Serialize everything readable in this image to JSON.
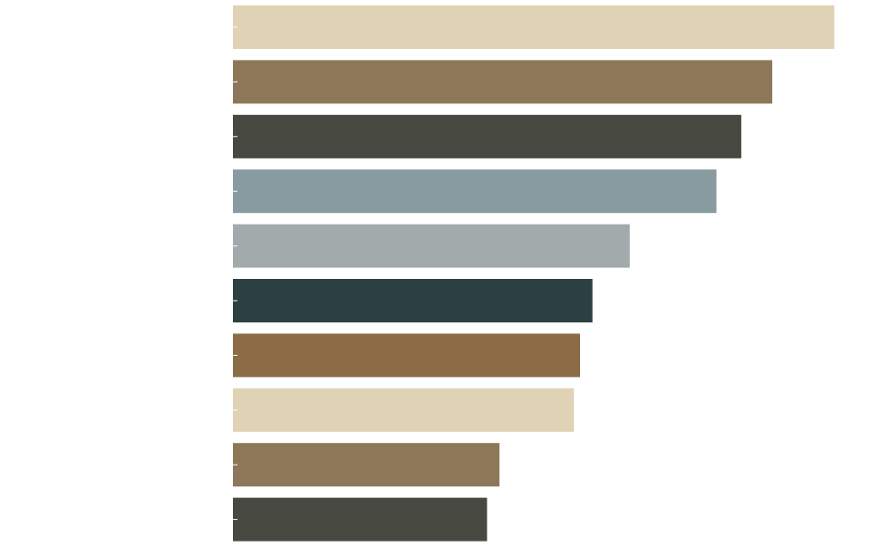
{
  "chart_data": {
    "type": "bar",
    "orientation": "horizontal",
    "title": "",
    "xlabel": "",
    "ylabel": "",
    "categories": [
      "",
      "",
      "",
      "",
      "",
      "",
      "",
      "",
      "",
      ""
    ],
    "values": [
      97,
      87,
      82,
      78,
      64,
      58,
      56,
      55,
      43,
      41
    ],
    "xlim": [
      0,
      100
    ],
    "grid": false,
    "legend": "none",
    "colors": [
      "#dfd2b5",
      "#8c7859",
      "#474840",
      "#889ba0",
      "#a3aaab",
      "#2c3f41",
      "#8b6c46",
      "#dfd2b5",
      "#8c7859",
      "#474840"
    ]
  }
}
